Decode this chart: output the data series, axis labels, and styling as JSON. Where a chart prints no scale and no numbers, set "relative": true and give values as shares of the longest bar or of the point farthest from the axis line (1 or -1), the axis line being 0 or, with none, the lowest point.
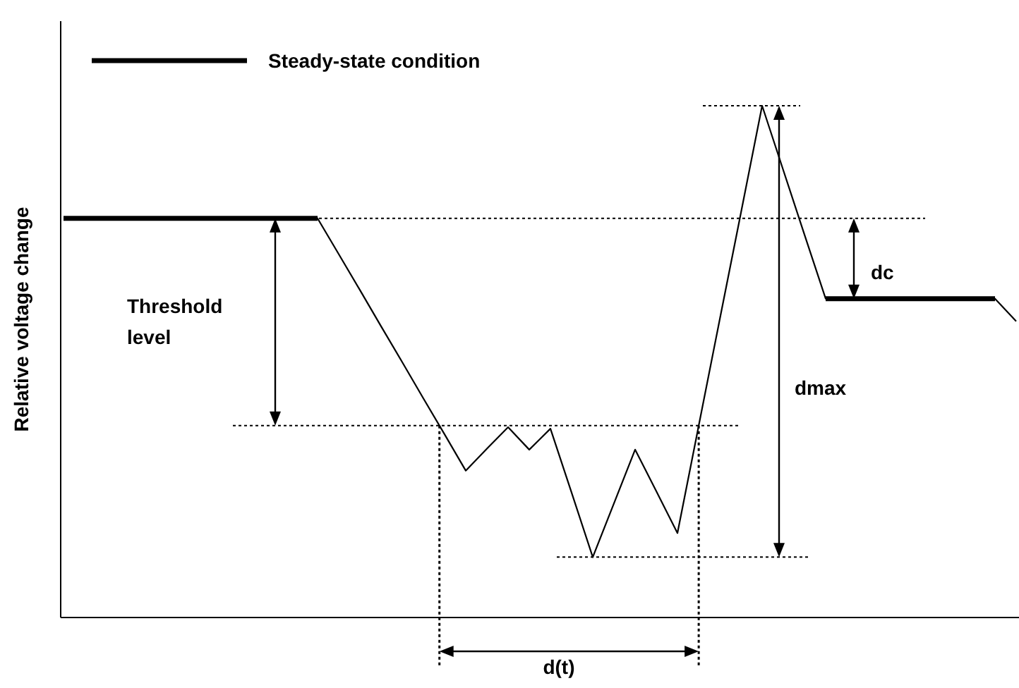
{
  "chart_data": {
    "type": "line",
    "relative": true,
    "ylabel": "Relative voltage change",
    "legend": "top left",
    "categories": [
      null,
      null,
      null,
      null,
      null,
      null,
      null,
      null,
      null,
      null,
      null,
      null,
      null,
      null,
      null,
      null,
      null,
      null,
      null,
      null,
      null,
      null,
      null,
      null,
      null,
      null,
      null,
      null,
      null,
      null,
      null,
      null,
      null,
      null,
      null,
      null,
      null,
      null,
      null,
      null,
      null,
      null,
      null,
      null,
      null,
      null
    ],
    "series": [
      {
        "color": "#000000",
        "line_style": "solid",
        "values": [
          0.78,
          0.78,
          0.78,
          0.78,
          0.78,
          0.78,
          0.78,
          0.78,
          0.78,
          0.78,
          0.78,
          0.78,
          0.78,
          0.71,
          0.64,
          0.569,
          0.499,
          0.428,
          0.358,
          0.287,
          0.33,
          0.372,
          0.328,
          0.369,
          0.244,
          0.118,
          0.223,
          0.328,
          0.247,
          0.165,
          0.374,
          0.583,
          0.791,
          1.0,
          0.874,
          0.748,
          0.623,
          0.623,
          0.623,
          0.623,
          0.623,
          0.623,
          0.623,
          0.623,
          0.623,
          0.579
        ]
      },
      {
        "name": "Steady-state condition",
        "color": "#000000",
        "line_style": "solid",
        "values": [
          0.78,
          0.78,
          0.78,
          0.78,
          0.78,
          0.78,
          0.78,
          0.78,
          0.78,
          0.78,
          0.78,
          0.78,
          0.78,
          null,
          null,
          null,
          null,
          null,
          null,
          null,
          null,
          null,
          null,
          null,
          null,
          null,
          null,
          null,
          null,
          null,
          null,
          null,
          null,
          null,
          null,
          null,
          0.623,
          0.623,
          0.623,
          0.623,
          0.623,
          0.623,
          0.623,
          0.623,
          0.623,
          null
        ]
      }
    ],
    "ref_lines": [
      {
        "axis": "y",
        "value": 0.78,
        "line_style": "dotted"
      },
      {
        "axis": "y",
        "value": 0.375,
        "line_style": "dotted"
      },
      {
        "axis": "y",
        "value": 0.118,
        "line_style": "dotted"
      },
      {
        "axis": "y",
        "value": 1.0,
        "line_style": "dotted"
      }
    ],
    "annotations": [
      "Threshold level",
      "dc",
      "dmax",
      "d(t)"
    ]
  }
}
